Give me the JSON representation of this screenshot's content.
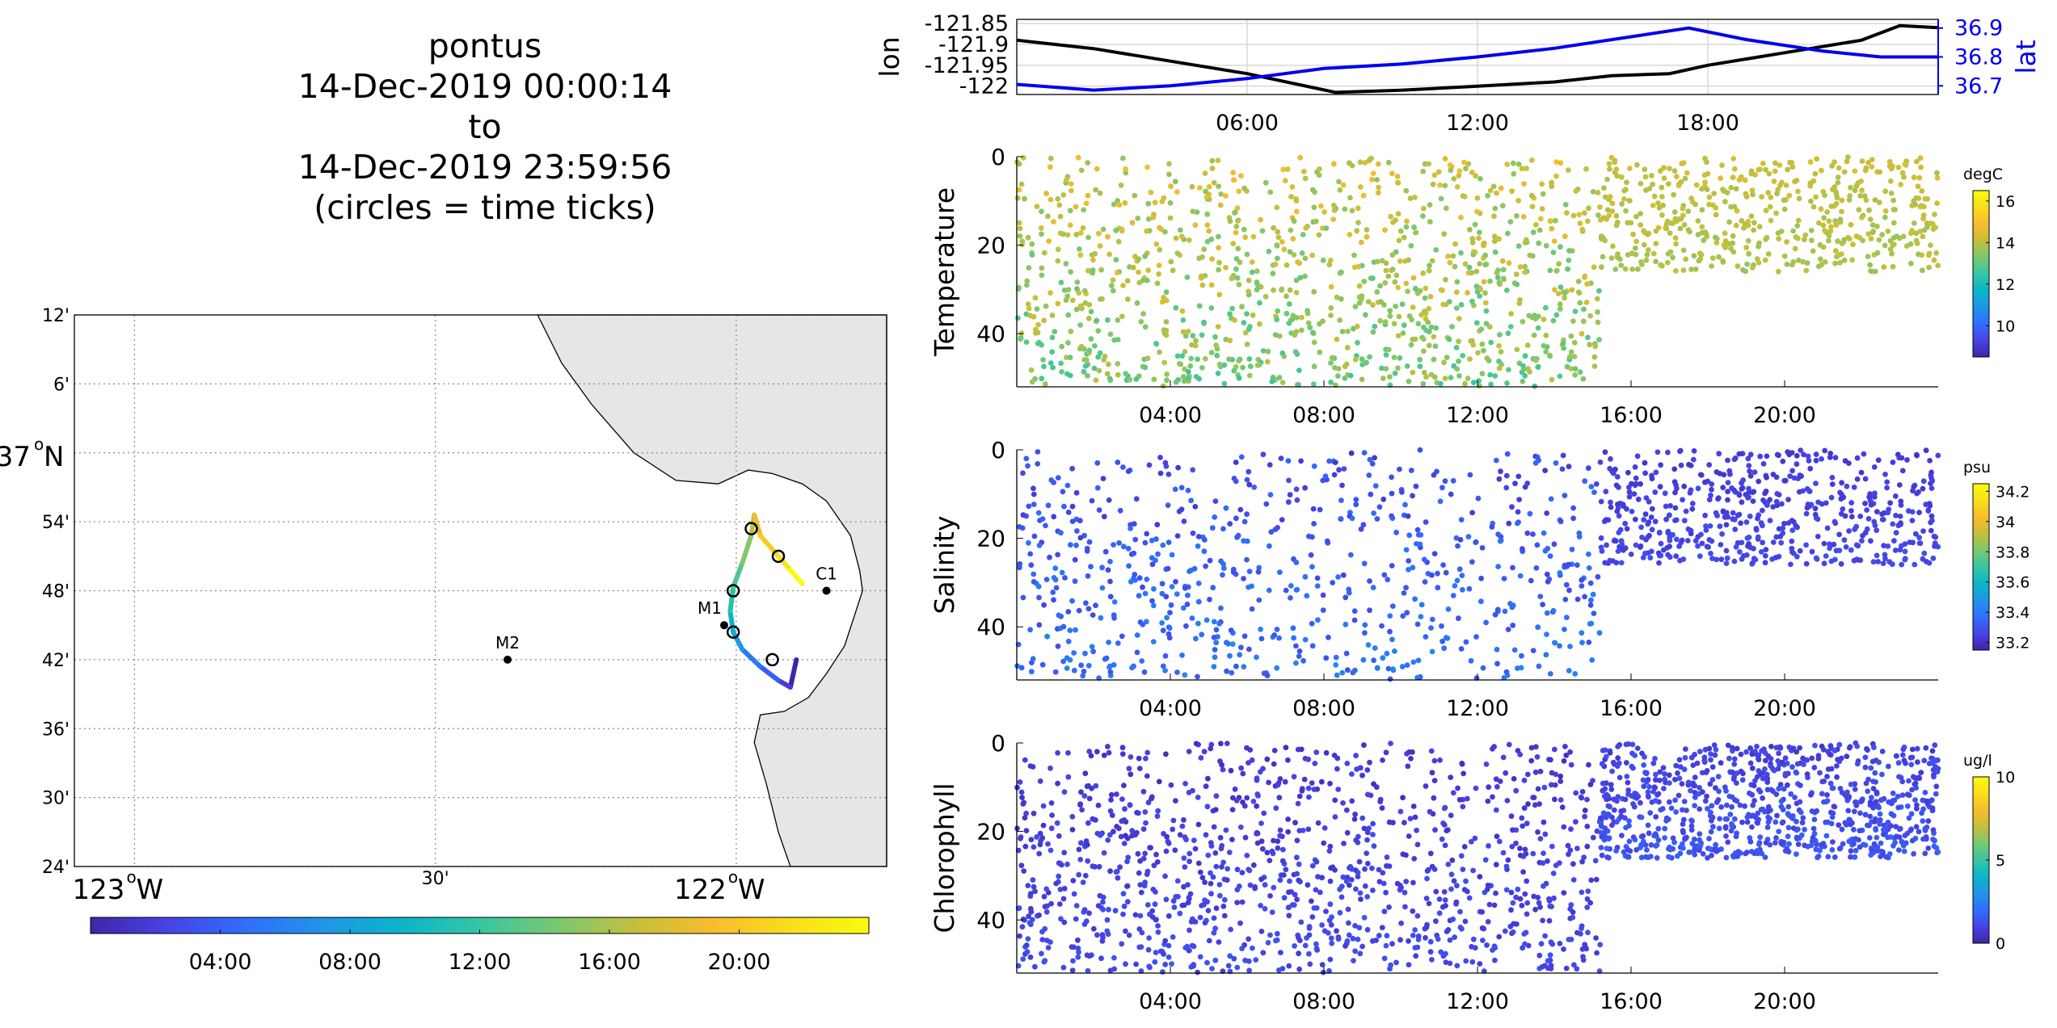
{
  "title": {
    "line1": "pontus",
    "line2": "14-Dec-2019 00:00:14",
    "line3": "to",
    "line4": "14-Dec-2019 23:59:56",
    "line5": "(circles = time ticks)"
  },
  "colors": {
    "land": "#e6e6e6",
    "lat_axis": "#0000ee",
    "lon_line": "#000000",
    "grid": "#888888",
    "parula": [
      "#3e26a8",
      "#4743e5",
      "#2f6ffc",
      "#1f95e6",
      "#0ab6c9",
      "#36c6a4",
      "#7ac86f",
      "#c5bf3c",
      "#f9bc2c",
      "#f9de1c",
      "#f9fb0e"
    ]
  },
  "chart_data": [
    {
      "id": "map",
      "type": "scatter",
      "title": "",
      "lat_ticks": [
        "12'",
        "6'",
        "37°N",
        "54'",
        "48'",
        "42'",
        "36'",
        "30'",
        "24'"
      ],
      "lon_ticks": [
        "123°W",
        "30'",
        "122°W"
      ],
      "lon_range": [
        -123.1,
        -121.75
      ],
      "lat_range": [
        36.4,
        37.2
      ],
      "stations": [
        {
          "name": "M2",
          "lon": -122.38,
          "lat": 36.7
        },
        {
          "name": "M1",
          "lon": -122.02,
          "lat": 36.75
        },
        {
          "name": "C1",
          "lon": -121.85,
          "lat": 36.8
        }
      ],
      "track": [
        {
          "lon": -121.9,
          "lat": 36.7
        },
        {
          "lon": -121.91,
          "lat": 36.66
        },
        {
          "lon": -121.93,
          "lat": 36.67
        },
        {
          "lon": -121.96,
          "lat": 36.69
        },
        {
          "lon": -121.99,
          "lat": 36.715
        },
        {
          "lon": -122.005,
          "lat": 36.74
        },
        {
          "lon": -122.01,
          "lat": 36.77
        },
        {
          "lon": -122.005,
          "lat": 36.805
        },
        {
          "lon": -121.99,
          "lat": 36.84
        },
        {
          "lon": -121.975,
          "lat": 36.88
        },
        {
          "lon": -121.97,
          "lat": 36.91
        },
        {
          "lon": -121.96,
          "lat": 36.88
        },
        {
          "lon": -121.93,
          "lat": 36.85
        },
        {
          "lon": -121.91,
          "lat": 36.83
        },
        {
          "lon": -121.89,
          "lat": 36.81
        }
      ],
      "time_ticks_lonlat": [
        {
          "lon": -121.94,
          "lat": 36.7
        },
        {
          "lon": -122.005,
          "lat": 36.74
        },
        {
          "lon": -122.005,
          "lat": 36.8
        },
        {
          "lon": -121.975,
          "lat": 36.89
        },
        {
          "lon": -121.93,
          "lat": 36.85
        }
      ],
      "colorbar_ticks": [
        "04:00",
        "08:00",
        "12:00",
        "16:00",
        "20:00"
      ]
    },
    {
      "id": "lonlat",
      "type": "line",
      "ylabel_left": "lon",
      "ylabel_right": "lat",
      "x_ticks": [
        "06:00",
        "12:00",
        "18:00"
      ],
      "lon_ticks": [
        "-121.85",
        "-121.9",
        "-121.95",
        "-122"
      ],
      "lat_ticks": [
        "36.9",
        "36.8",
        "36.7"
      ],
      "ylim_lon": [
        -122.02,
        -121.84
      ],
      "ylim_lat": [
        36.67,
        36.93
      ],
      "lon_series": {
        "name": "lon",
        "x": [
          0,
          2,
          4,
          6,
          8.3,
          10,
          12,
          14,
          15.5,
          17,
          18,
          20,
          22,
          23,
          24
        ],
        "values": [
          -121.89,
          -121.91,
          -121.94,
          -121.97,
          -122.015,
          -122.01,
          -122.0,
          -121.99,
          -121.975,
          -121.97,
          -121.95,
          -121.92,
          -121.89,
          -121.855,
          -121.86
        ]
      },
      "lat_series": {
        "name": "lat",
        "x": [
          0,
          2,
          4,
          6,
          8,
          10,
          12,
          14,
          16,
          17.5,
          19,
          21,
          22.5,
          24
        ],
        "values": [
          36.705,
          36.685,
          36.7,
          36.725,
          36.76,
          36.775,
          36.8,
          36.83,
          36.87,
          36.9,
          36.86,
          36.82,
          36.8,
          36.8
        ]
      }
    },
    {
      "id": "temperature",
      "type": "scatter",
      "ylabel": "Temperature",
      "y_ticks": [
        "0",
        "20",
        "40"
      ],
      "x_ticks": [
        "04:00",
        "08:00",
        "12:00",
        "16:00",
        "20:00"
      ],
      "xlim": [
        0,
        24
      ],
      "ylim": [
        52,
        0
      ],
      "colorbar": {
        "unit": "degC",
        "ticks": [
          "16",
          "14",
          "12",
          "10"
        ],
        "range": [
          8.5,
          16.5
        ]
      },
      "regions": [
        {
          "x": [
            0,
            15.2
          ],
          "depth": [
            0,
            52
          ],
          "value_range": [
            12.5,
            15
          ],
          "count": 1100
        },
        {
          "x": [
            15.2,
            24
          ],
          "depth": [
            0,
            26
          ],
          "value_range": [
            13.5,
            14.5
          ],
          "count": 500
        }
      ]
    },
    {
      "id": "salinity",
      "type": "scatter",
      "ylabel": "Salinity",
      "y_ticks": [
        "0",
        "20",
        "40"
      ],
      "x_ticks": [
        "04:00",
        "08:00",
        "12:00",
        "16:00",
        "20:00"
      ],
      "xlim": [
        0,
        24
      ],
      "ylim": [
        52,
        0
      ],
      "colorbar": {
        "unit": "psu",
        "ticks": [
          "34.2",
          "34",
          "33.8",
          "33.6",
          "33.4",
          "33.2"
        ],
        "range": [
          33.15,
          34.25
        ]
      },
      "regions": [
        {
          "x": [
            0,
            15.2
          ],
          "depth": [
            0,
            52
          ],
          "value_range": [
            33.2,
            33.45
          ],
          "count": 700
        },
        {
          "x": [
            15.2,
            24
          ],
          "depth": [
            0,
            26
          ],
          "value_range": [
            33.2,
            33.3
          ],
          "count": 550
        }
      ]
    },
    {
      "id": "chlorophyll",
      "type": "scatter",
      "ylabel": "Chlorophyll",
      "y_ticks": [
        "0",
        "20",
        "40"
      ],
      "x_ticks": [
        "04:00",
        "08:00",
        "12:00",
        "16:00",
        "20:00"
      ],
      "xlim": [
        0,
        24
      ],
      "ylim": [
        52,
        0
      ],
      "colorbar": {
        "unit": "ug/l",
        "ticks": [
          "10",
          "5",
          "0"
        ],
        "range": [
          0,
          10
        ]
      },
      "regions": [
        {
          "x": [
            0,
            15.2
          ],
          "depth": [
            0,
            52
          ],
          "value_range": [
            0.3,
            1.5
          ],
          "count": 1100
        },
        {
          "x": [
            15.2,
            24
          ],
          "depth": [
            0,
            26
          ],
          "value_range": [
            0.5,
            1.8
          ],
          "count": 850
        }
      ]
    }
  ]
}
